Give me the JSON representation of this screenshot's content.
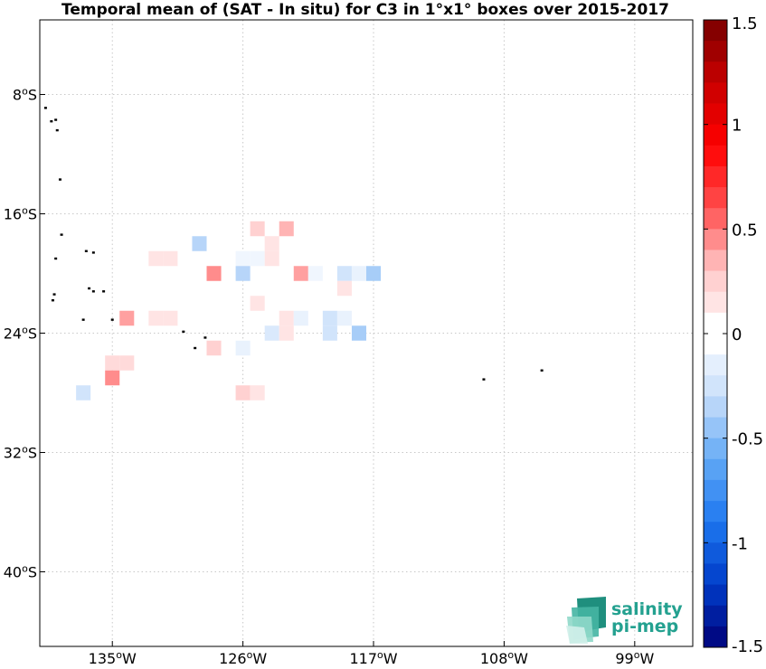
{
  "chart_data": {
    "type": "heatmap",
    "title": "Temporal mean of (SAT - In situ) for C3 in 1°x1° boxes over 2015-2017",
    "xlim": [
      -140,
      -95
    ],
    "ylim": [
      -45,
      -3
    ],
    "x_ticks": [
      {
        "value": -135,
        "label": "135°W"
      },
      {
        "value": -126,
        "label": "126°W"
      },
      {
        "value": -117,
        "label": "117°W"
      },
      {
        "value": -108,
        "label": "108°W"
      },
      {
        "value": -99,
        "label": "99°W"
      }
    ],
    "y_ticks": [
      {
        "value": -8,
        "label": "8°S"
      },
      {
        "value": -16,
        "label": "16°S"
      },
      {
        "value": -24,
        "label": "24°S"
      },
      {
        "value": -32,
        "label": "32°S"
      },
      {
        "value": -40,
        "label": "40°S"
      }
    ],
    "grid": true,
    "colorbar": {
      "min": -1.5,
      "max": 1.5,
      "steps": 30,
      "placement": "right",
      "tick_values": [
        1.5,
        1,
        0.5,
        0,
        -0.5,
        -1,
        -1.5
      ],
      "tick_labels": [
        "1.5",
        "1",
        "0.5",
        "0",
        "-0.5",
        "-1",
        "-1.5"
      ]
    },
    "cells": [
      {
        "lon": -125,
        "lat": -17,
        "value": 0.25
      },
      {
        "lon": -123,
        "lat": -17,
        "value": 0.35
      },
      {
        "lon": -129,
        "lat": -18,
        "value": -0.35
      },
      {
        "lon": -124,
        "lat": -18,
        "value": 0.15
      },
      {
        "lon": -132,
        "lat": -19,
        "value": 0.15
      },
      {
        "lon": -131,
        "lat": -19,
        "value": 0.15
      },
      {
        "lon": -126,
        "lat": -19,
        "value": -0.08
      },
      {
        "lon": -125,
        "lat": -19,
        "value": -0.08
      },
      {
        "lon": -124,
        "lat": -19,
        "value": 0.15
      },
      {
        "lon": -128,
        "lat": -20,
        "value": 0.45
      },
      {
        "lon": -126,
        "lat": -20,
        "value": -0.35
      },
      {
        "lon": -122,
        "lat": -20,
        "value": 0.4
      },
      {
        "lon": -121,
        "lat": -20,
        "value": -0.08
      },
      {
        "lon": -119,
        "lat": -20,
        "value": -0.25
      },
      {
        "lon": -118,
        "lat": -20,
        "value": -0.12
      },
      {
        "lon": -117,
        "lat": -20,
        "value": -0.4
      },
      {
        "lon": -119,
        "lat": -21,
        "value": 0.15
      },
      {
        "lon": -125,
        "lat": -22,
        "value": 0.15
      },
      {
        "lon": -134,
        "lat": -23,
        "value": 0.4
      },
      {
        "lon": -132,
        "lat": -23,
        "value": 0.15
      },
      {
        "lon": -131,
        "lat": -23,
        "value": 0.15
      },
      {
        "lon": -123,
        "lat": -23,
        "value": 0.15
      },
      {
        "lon": -122,
        "lat": -23,
        "value": -0.12
      },
      {
        "lon": -120,
        "lat": -23,
        "value": -0.25
      },
      {
        "lon": -119,
        "lat": -23,
        "value": -0.12
      },
      {
        "lon": -124,
        "lat": -24,
        "value": -0.2
      },
      {
        "lon": -123,
        "lat": -24,
        "value": 0.15
      },
      {
        "lon": -120,
        "lat": -24,
        "value": -0.25
      },
      {
        "lon": -118,
        "lat": -24,
        "value": -0.4
      },
      {
        "lon": -128,
        "lat": -25,
        "value": 0.25
      },
      {
        "lon": -126,
        "lat": -25,
        "value": -0.12
      },
      {
        "lon": -135,
        "lat": -26,
        "value": 0.2
      },
      {
        "lon": -134,
        "lat": -26,
        "value": 0.2
      },
      {
        "lon": -135,
        "lat": -27,
        "value": 0.45
      },
      {
        "lon": -137,
        "lat": -28,
        "value": -0.25
      },
      {
        "lon": -126,
        "lat": -28,
        "value": 0.25
      },
      {
        "lon": -125,
        "lat": -28,
        "value": 0.15
      }
    ]
  },
  "islands": [
    {
      "lon": -139.6,
      "lat": -8.9
    },
    {
      "lon": -139.2,
      "lat": -9.8
    },
    {
      "lon": -138.9,
      "lat": -9.7
    },
    {
      "lon": -138.8,
      "lat": -10.4
    },
    {
      "lon": -138.6,
      "lat": -13.7
    },
    {
      "lon": -138.5,
      "lat": -17.4
    },
    {
      "lon": -138.9,
      "lat": -19.0
    },
    {
      "lon": -136.8,
      "lat": -18.5
    },
    {
      "lon": -136.3,
      "lat": -18.6
    },
    {
      "lon": -136.6,
      "lat": -21.0
    },
    {
      "lon": -136.3,
      "lat": -21.2
    },
    {
      "lon": -135.6,
      "lat": -21.2
    },
    {
      "lon": -139.0,
      "lat": -21.4
    },
    {
      "lon": -139.1,
      "lat": -21.8
    },
    {
      "lon": -135.0,
      "lat": -23.1
    },
    {
      "lon": -137.0,
      "lat": -23.1
    },
    {
      "lon": -130.1,
      "lat": -23.9
    },
    {
      "lon": -128.6,
      "lat": -24.3
    },
    {
      "lon": -129.3,
      "lat": -25.0
    },
    {
      "lon": -109.4,
      "lat": -27.1
    },
    {
      "lon": -105.4,
      "lat": -26.5
    }
  ],
  "logo": {
    "line1": "salinity",
    "line2": "pi-mep",
    "color": "#24a190"
  }
}
